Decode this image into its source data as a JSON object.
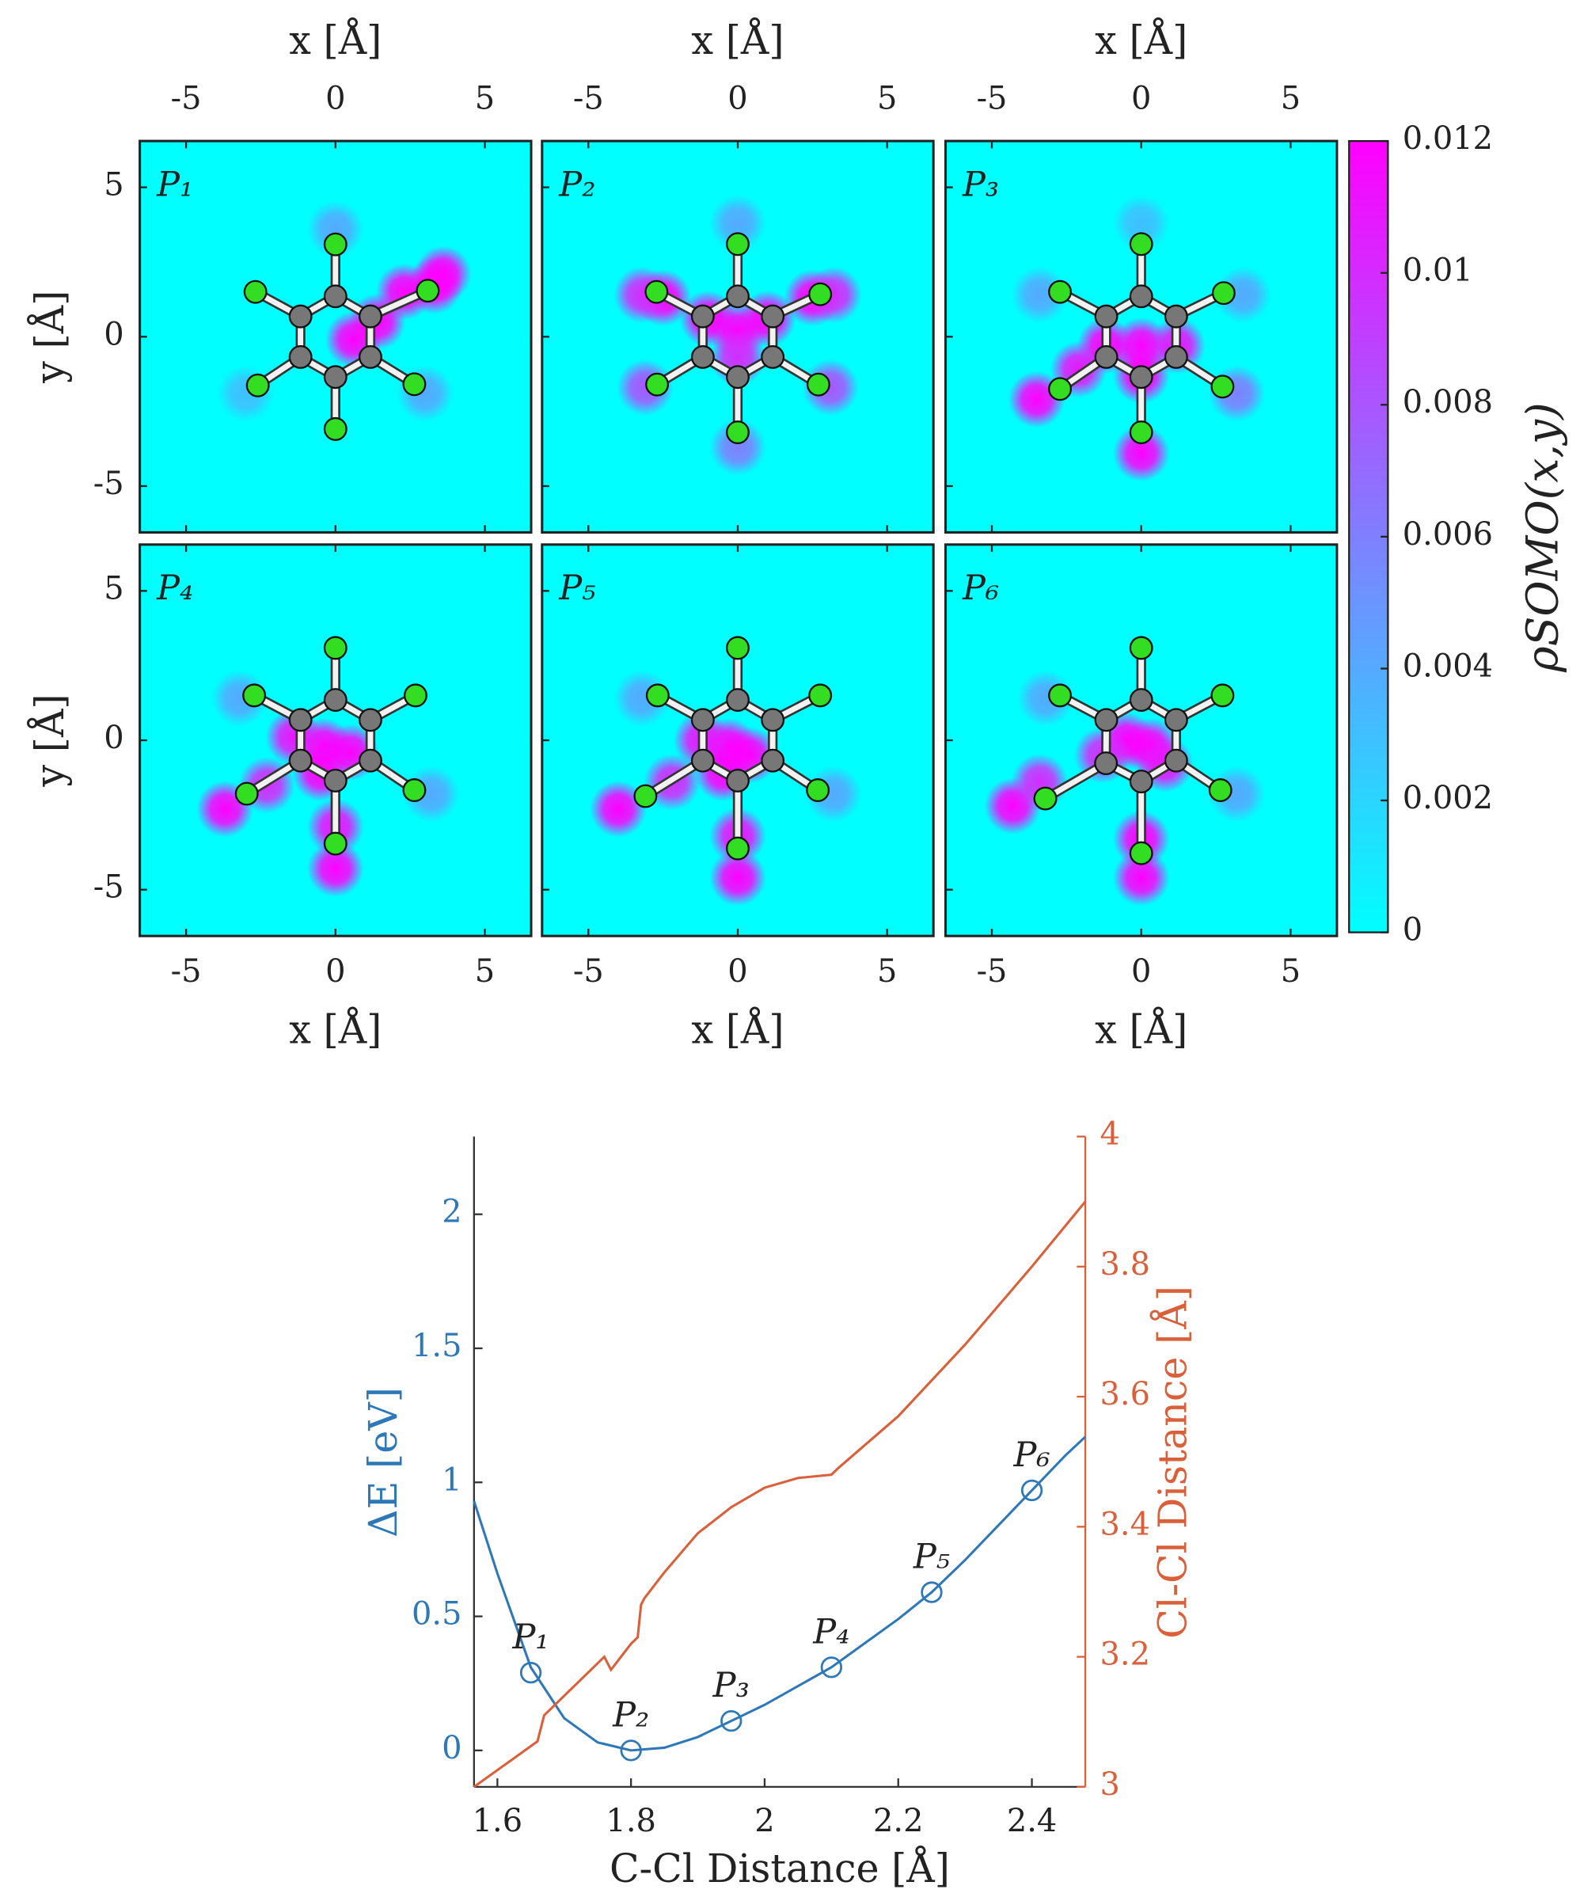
{
  "chart_data": [
    {
      "type": "heatmap",
      "xlabel": "x  [Å]",
      "ylabel": "y  [Å]",
      "xlim": [
        -6.55,
        6.55
      ],
      "ylim": [
        -6.55,
        6.55
      ],
      "xticks": [
        -5,
        0,
        5
      ],
      "yticks": [
        -5,
        0,
        5
      ],
      "colorbar": {
        "label": "ρSOMO(x,y)",
        "clim": [
          0,
          0.012
        ],
        "ticks": [
          0,
          0.002,
          0.004,
          0.006,
          0.008,
          0.01,
          0.012
        ],
        "colors": [
          "#00ffff",
          "#ff00ff"
        ]
      },
      "carbon_color": "#777777",
      "chlorine_color": "#33dd22",
      "panels": [
        {
          "label": "P₁",
          "carbon_x": [
            0,
            1.17,
            1.17,
            0,
            -1.17,
            -1.17
          ],
          "carbon_y": [
            1.35,
            0.68,
            -0.68,
            -1.35,
            -0.68,
            0.68
          ],
          "chlorine_x": [
            0,
            3.09,
            2.64,
            0,
            -2.6,
            -2.68
          ],
          "chlorine_y": [
            3.09,
            1.54,
            -1.59,
            -3.09,
            -1.63,
            1.5
          ],
          "density_x": [
            0.6,
            1.4,
            2.3,
            3.3,
            3.6,
            0,
            -3,
            3
          ],
          "density_y": [
            -0.1,
            0.5,
            1.5,
            1.7,
            2.1,
            3.6,
            -1.9,
            -1.9
          ],
          "density_values": [
            0.012,
            0.012,
            0.012,
            0.012,
            0.012,
            0.004,
            0.003,
            0.004
          ]
        },
        {
          "label": "P₂",
          "carbon_x": [
            0,
            1.17,
            1.17,
            0,
            -1.17,
            -1.17
          ],
          "carbon_y": [
            1.35,
            0.68,
            -0.68,
            -1.35,
            -0.68,
            0.68
          ],
          "chlorine_x": [
            0,
            2.76,
            2.7,
            0,
            -2.7,
            -2.72
          ],
          "chlorine_y": [
            3.1,
            1.42,
            -1.6,
            -3.2,
            -1.6,
            1.5
          ],
          "density_x": [
            0,
            -1,
            1,
            0,
            -2.5,
            2.5,
            -3.2,
            3.2,
            -3.1,
            3.1,
            0,
            0
          ],
          "density_y": [
            0.2,
            0.6,
            0.6,
            -0.7,
            1.3,
            1.3,
            1.4,
            1.4,
            -1.7,
            -1.7,
            -3.7,
            3.8
          ],
          "density_values": [
            0.012,
            0.012,
            0.012,
            0.01,
            0.012,
            0.012,
            0.01,
            0.01,
            0.008,
            0.008,
            0.006,
            0.004
          ]
        },
        {
          "label": "P₃",
          "carbon_x": [
            0,
            1.17,
            1.17,
            0,
            -1.17,
            -1.17
          ],
          "carbon_y": [
            1.35,
            0.68,
            -0.68,
            -1.35,
            -0.68,
            0.68
          ],
          "chlorine_x": [
            0,
            2.76,
            2.72,
            0,
            -2.72,
            -2.72
          ],
          "chlorine_y": [
            3.1,
            1.46,
            -1.67,
            -3.2,
            -1.75,
            1.5
          ],
          "density_x": [
            0,
            -1.2,
            1.2,
            0,
            -2.1,
            -3.5,
            3.2,
            0,
            -3.4,
            3.4,
            0
          ],
          "density_y": [
            -0.3,
            -0.3,
            -0.3,
            -1.3,
            -1.1,
            -2.1,
            -1.9,
            -3.9,
            1.4,
            1.4,
            3.8
          ],
          "density_values": [
            0.012,
            0.012,
            0.011,
            0.012,
            0.011,
            0.012,
            0.006,
            0.012,
            0.004,
            0.004,
            0.003
          ]
        },
        {
          "label": "P₄",
          "carbon_x": [
            0,
            1.17,
            1.17,
            0,
            -1.17,
            -1.17
          ],
          "carbon_y": [
            1.35,
            0.68,
            -0.68,
            -1.35,
            -0.68,
            0.68
          ],
          "chlorine_x": [
            0,
            2.68,
            2.64,
            0,
            -2.97,
            -2.72
          ],
          "chlorine_y": [
            3.09,
            1.5,
            -1.67,
            -3.46,
            -1.79,
            1.5
          ],
          "density_x": [
            -0.4,
            0.5,
            -1.4,
            -0.5,
            -2.3,
            -3.7,
            0,
            0,
            3.2,
            -3.2
          ],
          "density_y": [
            -0.2,
            -0.4,
            0.1,
            -1.1,
            -1.5,
            -2.3,
            -2.9,
            -4.3,
            -1.8,
            1.4
          ],
          "density_values": [
            0.012,
            0.012,
            0.011,
            0.012,
            0.01,
            0.012,
            0.011,
            0.012,
            0.004,
            0.004
          ]
        },
        {
          "label": "P₅",
          "carbon_x": [
            0,
            1.17,
            1.17,
            0,
            -1.17,
            -1.17
          ],
          "carbon_y": [
            1.35,
            0.68,
            -0.68,
            -1.35,
            -0.68,
            0.68
          ],
          "chlorine_x": [
            0,
            2.76,
            2.68,
            0,
            -3.09,
            -2.68
          ],
          "chlorine_y": [
            3.09,
            1.5,
            -1.67,
            -3.62,
            -1.87,
            1.5
          ],
          "density_x": [
            -0.3,
            0.4,
            -1.2,
            -0.5,
            -2.2,
            -4.0,
            0,
            0,
            3.2,
            -3.2
          ],
          "density_y": [
            -0.2,
            -0.5,
            0,
            -1.1,
            -1.4,
            -2.3,
            -3.2,
            -4.6,
            -1.8,
            1.4
          ],
          "density_values": [
            0.012,
            0.012,
            0.011,
            0.012,
            0.01,
            0.012,
            0.011,
            0.012,
            0.004,
            0.004
          ]
        },
        {
          "label": "P₆",
          "carbon_x": [
            0,
            1.17,
            1.17,
            0,
            -1.18,
            -1.17
          ],
          "carbon_y": [
            1.35,
            0.68,
            -0.68,
            -1.38,
            -0.77,
            0.68
          ],
          "chlorine_x": [
            0,
            2.72,
            2.65,
            0,
            -3.21,
            -2.72
          ],
          "chlorine_y": [
            3.09,
            1.5,
            -1.67,
            -3.78,
            -1.95,
            1.5
          ],
          "density_x": [
            -0.5,
            0.3,
            0.8,
            -1.3,
            -4.3,
            -3.4,
            0,
            0,
            3.2,
            -3.2
          ],
          "density_y": [
            0.0,
            -0.2,
            -0.8,
            -0.5,
            -2.2,
            -1.4,
            -3.3,
            -4.6,
            -1.8,
            1.4
          ],
          "density_values": [
            0.012,
            0.012,
            0.011,
            0.01,
            0.012,
            0.01,
            0.012,
            0.012,
            0.004,
            0.004
          ]
        }
      ]
    },
    {
      "type": "line",
      "xlabel": "C-Cl Distance [Å]",
      "ylabel": "ΔE [eV]",
      "y2label": "Cl-Cl Distance [Å]",
      "xlim": [
        1.565,
        2.48
      ],
      "ylim": [
        -0.136,
        2.29
      ],
      "y2lim": [
        3,
        4
      ],
      "xticks": [
        1.6,
        1.8,
        2,
        2.2,
        2.4
      ],
      "yticks": [
        0,
        0.5,
        1,
        1.5,
        2
      ],
      "y2ticks": [
        3,
        3.2,
        3.4,
        3.6,
        3.8,
        4
      ],
      "series": [
        {
          "color": "#2f78b8",
          "x": [
            1.565,
            1.6,
            1.65,
            1.7,
            1.75,
            1.8,
            1.85,
            1.9,
            1.95,
            2.0,
            2.05,
            2.1,
            2.15,
            2.2,
            2.25,
            2.3,
            2.35,
            2.4,
            2.45,
            2.48
          ],
          "values": [
            0.93,
            0.66,
            0.31,
            0.12,
            0.03,
            0.0,
            0.01,
            0.05,
            0.11,
            0.17,
            0.24,
            0.31,
            0.4,
            0.49,
            0.59,
            0.71,
            0.84,
            0.97,
            1.1,
            1.17
          ]
        },
        {
          "color": "#d9603a",
          "axis": "y2",
          "x": [
            1.565,
            1.66,
            1.67,
            1.7,
            1.74,
            1.76,
            1.77,
            1.8,
            1.81,
            1.815,
            1.82,
            1.85,
            1.9,
            1.95,
            2.0,
            2.05,
            2.1,
            2.11,
            2.2,
            2.3,
            2.4,
            2.48
          ],
          "values": [
            3.0,
            3.07,
            3.11,
            3.14,
            3.18,
            3.2,
            3.18,
            3.22,
            3.23,
            3.28,
            3.29,
            3.33,
            3.39,
            3.43,
            3.46,
            3.475,
            3.48,
            3.49,
            3.57,
            3.68,
            3.8,
            3.9
          ]
        }
      ],
      "points": {
        "x": [
          1.65,
          1.8,
          1.95,
          2.1,
          2.25,
          2.4
        ],
        "values": [
          0.29,
          0.0,
          0.11,
          0.31,
          0.59,
          0.97
        ],
        "labels": [
          "P₁",
          "P₂",
          "P₃",
          "P₄",
          "P₅",
          "P₆"
        ]
      }
    }
  ]
}
